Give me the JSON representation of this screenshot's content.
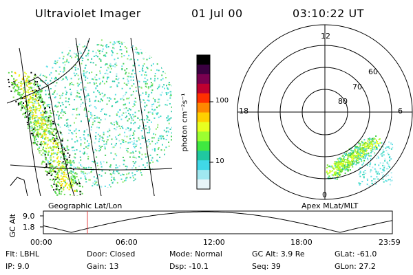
{
  "header": {
    "instrument": "Ultraviolet Imager",
    "date": "01 Jul 00",
    "time": "03:10:22 UT"
  },
  "geo_panel": {
    "label": "Geographic Lat/Lon"
  },
  "polar_panel": {
    "label": "Apex MLat/MLT",
    "mlt_labels": {
      "top": "12",
      "left": "18",
      "right": "6",
      "bottom": "0"
    },
    "lat_labels": [
      "60",
      "70",
      "80"
    ]
  },
  "colorbar": {
    "unit_label": "photon cm⁻²s⁻¹",
    "ticks": [
      "100",
      "10"
    ],
    "colors": [
      "#000000",
      "#3a0040",
      "#7a0050",
      "#c00030",
      "#ff3000",
      "#ff8800",
      "#ffd000",
      "#e8ff20",
      "#9cff30",
      "#40e840",
      "#20c8a0",
      "#40d8e8",
      "#a0e8f0",
      "#e8f4f8"
    ]
  },
  "altitude_plot": {
    "ylabel": "GC Alt",
    "yticks": [
      "9.0",
      "1.8"
    ],
    "xticks": [
      "00:00",
      "06:00",
      "12:00",
      "18:00",
      "23:59"
    ],
    "cursor_time": "03:10",
    "cursor_color": "#e04040"
  },
  "info": {
    "flt": "Flt: LBHL",
    "ip": "IP:  9.0",
    "door": "Door: Closed",
    "gain": "Gain: 13",
    "mode": "Mode: Normal",
    "dsp": "Dsp:  -10.1",
    "gcalt": "GC Alt: 3.9 Re",
    "seq": "Seq: 39",
    "glat": "GLat: -61.0",
    "glon": "GLon:  27.2"
  }
}
